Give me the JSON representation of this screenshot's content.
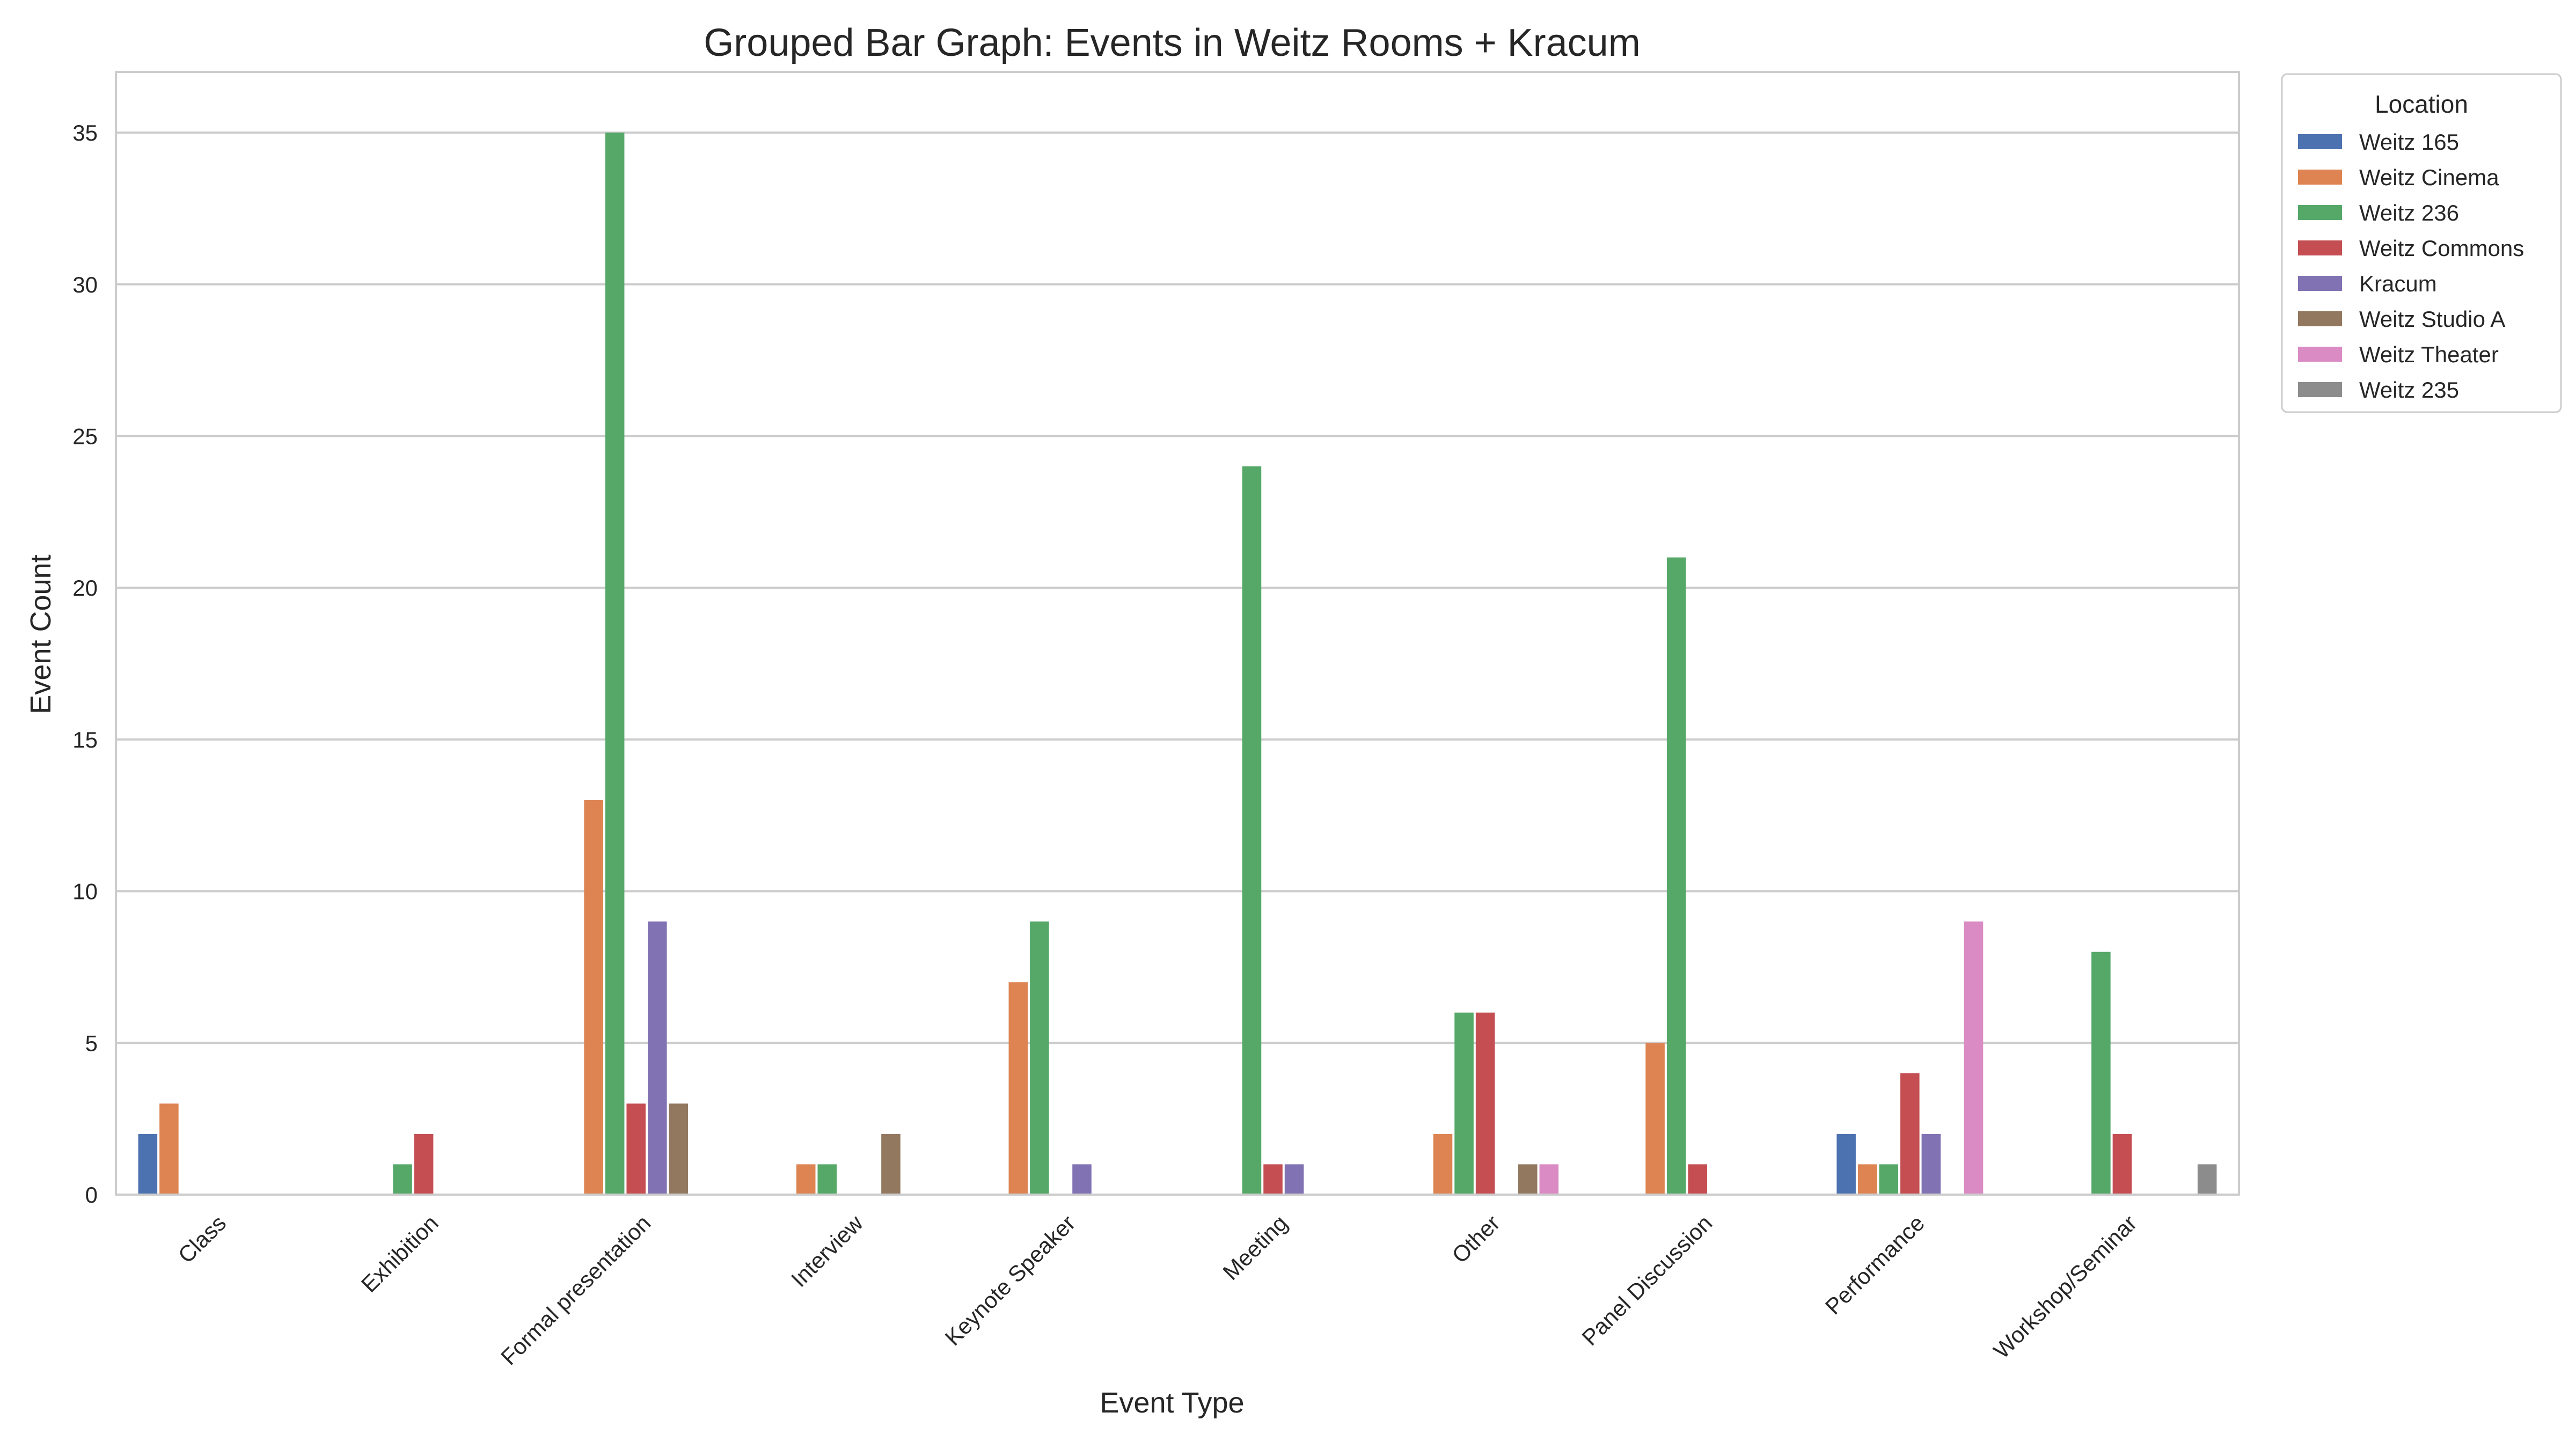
{
  "chart_data": {
    "type": "bar",
    "title": "Grouped Bar Graph: Events in Weitz Rooms + Kracum",
    "xlabel": "Event Type",
    "ylabel": "Event Count",
    "ylim": [
      0,
      37
    ],
    "yticks": [
      0,
      5,
      10,
      15,
      20,
      25,
      30,
      35
    ],
    "grid": "horizontal",
    "legend_title": "Location",
    "legend_position": "outside top-right",
    "categories": [
      "Class",
      "Exhibition",
      "Formal presentation",
      "Interview",
      "Keynote Speaker",
      "Meeting",
      "Other",
      "Panel Discussion",
      "Performance",
      "Workshop/Seminar"
    ],
    "series": [
      {
        "name": "Weitz 165",
        "color": "#4c72b0",
        "values": [
          2,
          null,
          null,
          null,
          null,
          null,
          null,
          null,
          2,
          null
        ]
      },
      {
        "name": "Weitz Cinema",
        "color": "#dd8452",
        "values": [
          3,
          null,
          13,
          1,
          7,
          null,
          2,
          5,
          1,
          null
        ]
      },
      {
        "name": "Weitz 236",
        "color": "#55a868",
        "values": [
          null,
          1,
          35,
          1,
          9,
          24,
          6,
          21,
          1,
          8
        ]
      },
      {
        "name": "Weitz Commons",
        "color": "#c44e52",
        "values": [
          null,
          2,
          3,
          null,
          null,
          1,
          6,
          1,
          4,
          2
        ]
      },
      {
        "name": "Kracum",
        "color": "#8172b3",
        "values": [
          null,
          null,
          9,
          null,
          1,
          1,
          null,
          null,
          2,
          null
        ]
      },
      {
        "name": "Weitz Studio A",
        "color": "#937860",
        "values": [
          null,
          null,
          3,
          2,
          null,
          null,
          1,
          null,
          null,
          null
        ]
      },
      {
        "name": "Weitz Theater",
        "color": "#da8bc3",
        "values": [
          null,
          null,
          null,
          null,
          null,
          null,
          1,
          null,
          9,
          null
        ]
      },
      {
        "name": "Weitz 235",
        "color": "#8c8c8c",
        "values": [
          null,
          null,
          null,
          null,
          null,
          null,
          null,
          null,
          null,
          1
        ]
      }
    ]
  }
}
